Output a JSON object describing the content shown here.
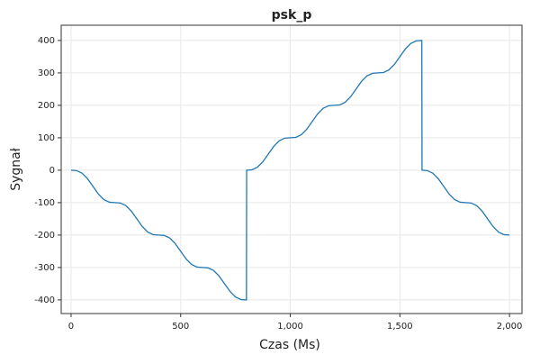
{
  "chart_data": {
    "type": "line",
    "title": "psk_p",
    "xlabel": "Czas (Ms)",
    "ylabel": "Sygnał",
    "x": [
      0,
      25,
      50,
      75,
      100,
      125,
      150,
      175,
      200,
      225,
      250,
      275,
      300,
      325,
      350,
      375,
      400,
      425,
      450,
      475,
      500,
      525,
      550,
      575,
      600,
      625,
      650,
      675,
      700,
      725,
      750,
      775,
      800,
      801,
      825,
      850,
      875,
      900,
      925,
      950,
      975,
      1000,
      1025,
      1050,
      1075,
      1100,
      1125,
      1150,
      1175,
      1200,
      1225,
      1250,
      1275,
      1300,
      1325,
      1350,
      1375,
      1400,
      1425,
      1450,
      1475,
      1500,
      1525,
      1550,
      1575,
      1600,
      1601,
      1625,
      1650,
      1675,
      1700,
      1725,
      1750,
      1775,
      1800,
      1825,
      1850,
      1875,
      1900,
      1925,
      1950,
      1975,
      2000
    ],
    "values": [
      0,
      -1.2,
      -9.1,
      -26.2,
      -50,
      -73.8,
      -90.9,
      -98.8,
      -100,
      -101.2,
      -109.1,
      -126.2,
      -150,
      -173.8,
      -190.9,
      -198.8,
      -200,
      -201.2,
      -209.1,
      -226.2,
      -250,
      -273.8,
      -290.9,
      -298.8,
      -300,
      -301.2,
      -309.1,
      -326.2,
      -350,
      -373.8,
      -390.9,
      -398.8,
      -400,
      0,
      1.2,
      9.1,
      26.2,
      50,
      73.8,
      90.9,
      98.8,
      100,
      101.2,
      109.1,
      126.2,
      150,
      173.8,
      190.9,
      198.8,
      200,
      201.2,
      209.1,
      226.2,
      250,
      273.8,
      290.9,
      298.8,
      300,
      301.2,
      309.1,
      326.2,
      350,
      373.8,
      390.9,
      398.8,
      400,
      0,
      -1.2,
      -9.1,
      -26.2,
      -50,
      -73.8,
      -90.9,
      -98.8,
      -100,
      -101.2,
      -109.1,
      -126.2,
      -150,
      -173.8,
      -190.9,
      -198.8,
      -200
    ],
    "color": "#1f77b4",
    "xlim": [
      -45,
      2057
    ],
    "ylim": [
      -442,
      447
    ],
    "xticks": [
      0,
      500,
      {
        "value": 1000,
        "label": "1,000"
      },
      {
        "value": 1500,
        "label": "1,500"
      },
      {
        "value": 2000,
        "label": "2,000"
      }
    ],
    "yticks": [
      -400,
      -300,
      -200,
      -100,
      0,
      100,
      200,
      300,
      400
    ],
    "grid": true
  }
}
